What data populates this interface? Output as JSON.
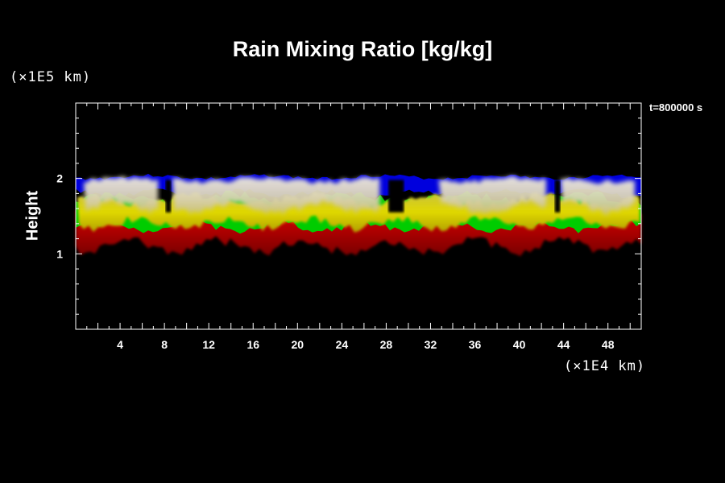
{
  "chart_data": {
    "type": "heatmap",
    "title": "Rain Mixing Ratio [kg/kg]",
    "timestamp": "t=800000 s",
    "ylabel": "Height",
    "y_unit": "(×1E5 km)",
    "x_unit": "(×1E4 km)",
    "xlim": [
      0,
      51
    ],
    "ylim": [
      0,
      3
    ],
    "xticks": [
      "4",
      "8",
      "12",
      "16",
      "20",
      "24",
      "28",
      "32",
      "36",
      "40",
      "44",
      "48"
    ],
    "yticks": [
      "1",
      "2"
    ],
    "colors": {
      "background": "#000000",
      "low": "#cc0000",
      "mid": "#d8d800",
      "high": "#e8e0c8",
      "edge_green": "#00cc00",
      "top_blue": "#0000dd"
    },
    "layers": [
      {
        "band": "red",
        "y_range": [
          1.1,
          1.42
        ]
      },
      {
        "band": "yellow",
        "y_range": [
          1.4,
          1.72
        ]
      },
      {
        "band": "white",
        "y_range": [
          1.68,
          1.98
        ]
      },
      {
        "band": "blue",
        "y_range": [
          1.8,
          2.02
        ]
      }
    ],
    "cells_x_range": [
      [
        0,
        8
      ],
      [
        8,
        28
      ],
      [
        32,
        43
      ],
      [
        43,
        51
      ]
    ]
  }
}
